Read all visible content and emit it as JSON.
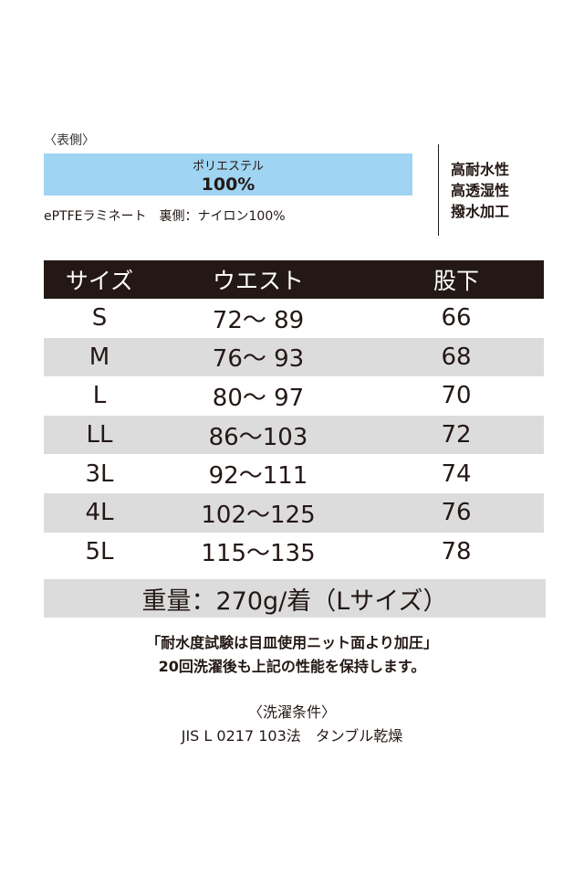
{
  "material": {
    "front_label": "〈表側〉",
    "fabric_name": "ポリエステル",
    "fabric_percent": "100%",
    "laminate_text": "ePTFEラミネート　裏側：ナイロン100%",
    "box_color": "#9fd4f2"
  },
  "features": [
    "高耐水性",
    "高透湿性",
    "撥水加工"
  ],
  "size_table": {
    "headers": [
      "サイズ",
      "ウエスト",
      "股下"
    ],
    "header_color": "#231815",
    "shade_color": "#dcdcdd",
    "rows": [
      {
        "size": "S",
        "waist": "72～ 89",
        "inseam": "66"
      },
      {
        "size": "M",
        "waist": "76～ 93",
        "inseam": "68"
      },
      {
        "size": "L",
        "waist": "80～ 97",
        "inseam": "70"
      },
      {
        "size": "LL",
        "waist": "86～103",
        "inseam": "72"
      },
      {
        "size": "3L",
        "waist": "92～111",
        "inseam": "74"
      },
      {
        "size": "4L",
        "waist": "102～125",
        "inseam": "76"
      },
      {
        "size": "5L",
        "waist": "115～135",
        "inseam": "78"
      }
    ]
  },
  "weight": "重量：270g/着（Lサイズ）",
  "notes": {
    "line1": "「耐水度試験は目皿使用ニット面より加圧」",
    "line2": "20回洗濯後も上記の性能を保持します。"
  },
  "washing": {
    "title": "〈洗濯条件〉",
    "condition": "JIS L 0217 103法　タンブル乾燥"
  }
}
